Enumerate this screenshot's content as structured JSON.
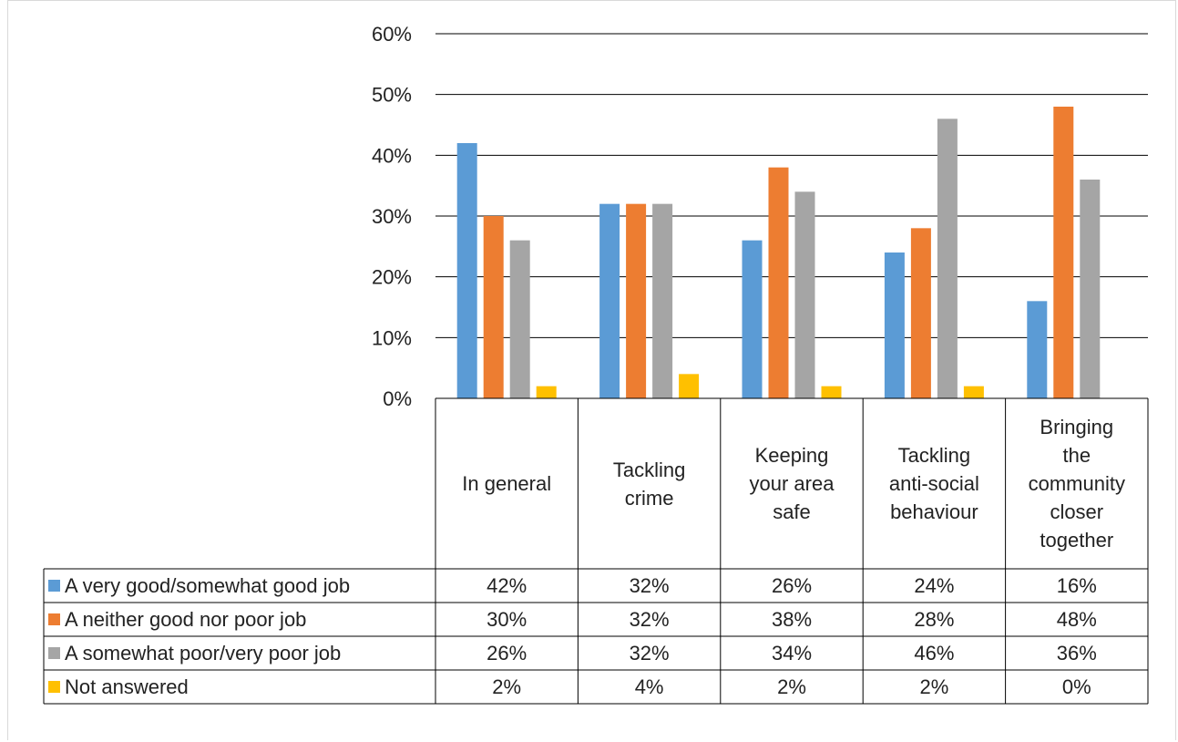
{
  "chart_data": {
    "type": "bar",
    "categories": [
      "In general",
      "Tackling crime",
      "Keeping your area safe",
      "Tackling anti-social behaviour",
      "Bringing the community closer together"
    ],
    "category_lines": [
      [
        "In general"
      ],
      [
        "Tackling",
        "crime"
      ],
      [
        "Keeping",
        "your area",
        "safe"
      ],
      [
        "Tackling",
        "anti-social",
        "behaviour"
      ],
      [
        "Bringing",
        "the",
        "community",
        "closer",
        "together"
      ]
    ],
    "series": [
      {
        "name": "A very good/somewhat good job",
        "color": "#5b9bd5",
        "values": [
          42,
          32,
          26,
          24,
          16
        ],
        "labels": [
          "42%",
          "32%",
          "26%",
          "24%",
          "16%"
        ]
      },
      {
        "name": "A neither good nor poor job",
        "color": "#ed7d31",
        "values": [
          30,
          32,
          38,
          28,
          48
        ],
        "labels": [
          "30%",
          "32%",
          "38%",
          "28%",
          "48%"
        ]
      },
      {
        "name": "A somewhat poor/very poor job",
        "color": "#a5a5a5",
        "values": [
          26,
          32,
          34,
          46,
          36
        ],
        "labels": [
          "26%",
          "32%",
          "34%",
          "46%",
          "36%"
        ]
      },
      {
        "name": "Not answered",
        "color": "#ffc000",
        "values": [
          2,
          4,
          2,
          2,
          0
        ],
        "labels": [
          "2%",
          "4%",
          "2%",
          "2%",
          "0%"
        ]
      }
    ],
    "y_ticks": [
      "0%",
      "10%",
      "20%",
      "30%",
      "40%",
      "50%",
      "60%"
    ],
    "ylim": [
      0,
      60
    ],
    "grid": true,
    "legend": "data-table"
  }
}
